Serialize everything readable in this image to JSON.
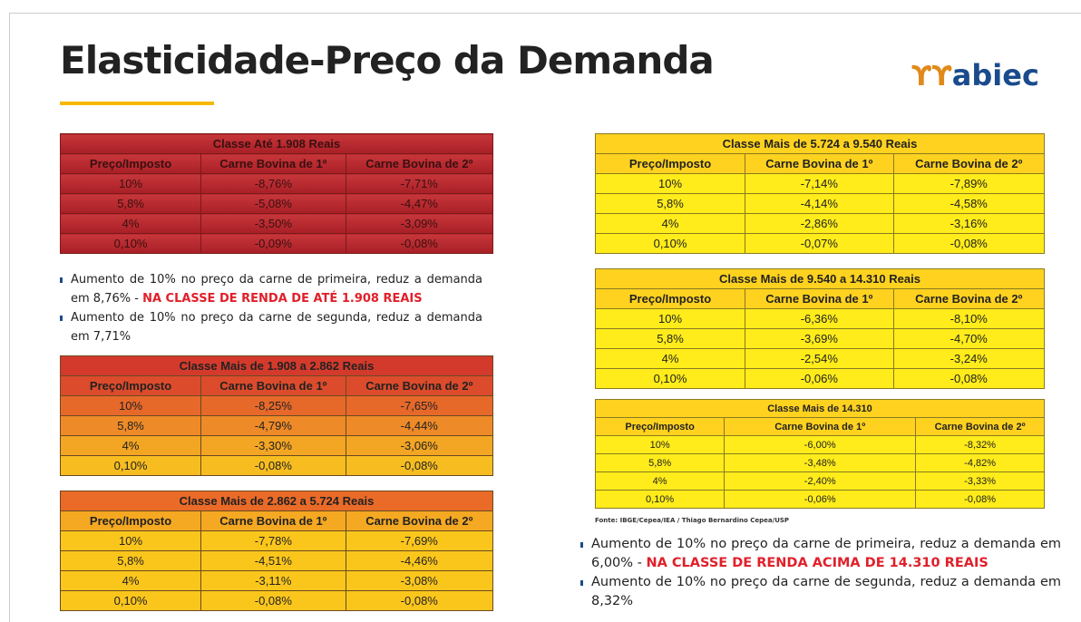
{
  "title": "Elasticidade-Preço da Demanda",
  "logo": "abiec",
  "tables": [
    {
      "caption": "Classe Até 1.908 Reais",
      "header": [
        "Preço/Imposto",
        "Carne Bovina de 1º",
        "Carne Bovina de 2º"
      ],
      "rows": [
        [
          "10%",
          "-8,76%",
          "-7,71%"
        ],
        [
          "5,8%",
          "-5,08%",
          "-4,47%"
        ],
        [
          "4%",
          "-3,50%",
          "-3,09%"
        ],
        [
          "0,10%",
          "-0,09%",
          "-0,08%"
        ]
      ]
    },
    {
      "caption": "Classe Mais de 1.908 a 2.862 Reais",
      "header": [
        "Preço/Imposto",
        "Carne Bovina de 1º",
        "Carne Bovina de 2º"
      ],
      "rows": [
        [
          "10%",
          "-8,25%",
          "-7,65%"
        ],
        [
          "5,8%",
          "-4,79%",
          "-4,44%"
        ],
        [
          "4%",
          "-3,30%",
          "-3,06%"
        ],
        [
          "0,10%",
          "-0,08%",
          "-0,08%"
        ]
      ]
    },
    {
      "caption": "Classe Mais de 2.862 a 5.724 Reais",
      "header": [
        "Preço/Imposto",
        "Carne Bovina de 1º",
        "Carne Bovina de 2º"
      ],
      "rows": [
        [
          "10%",
          "-7,78%",
          "-7,69%"
        ],
        [
          "5,8%",
          "-4,51%",
          "-4,46%"
        ],
        [
          "4%",
          "-3,11%",
          "-3,08%"
        ],
        [
          "0,10%",
          "-0,08%",
          "-0,08%"
        ]
      ]
    },
    {
      "caption": "Classe Mais de 5.724 a 9.540 Reais",
      "header": [
        "Preço/Imposto",
        "Carne Bovina de 1º",
        "Carne Bovina de 2º"
      ],
      "rows": [
        [
          "10%",
          "-7,14%",
          "-7,89%"
        ],
        [
          "5,8%",
          "-4,14%",
          "-4,58%"
        ],
        [
          "4%",
          "-2,86%",
          "-3,16%"
        ],
        [
          "0,10%",
          "-0,07%",
          "-0,08%"
        ]
      ]
    },
    {
      "caption": "Classe Mais de 9.540 a 14.310 Reais",
      "header": [
        "Preço/Imposto",
        "Carne Bovina de 1º",
        "Carne Bovina de 2º"
      ],
      "rows": [
        [
          "10%",
          "-6,36%",
          "-8,10%"
        ],
        [
          "5,8%",
          "-3,69%",
          "-4,70%"
        ],
        [
          "4%",
          "-2,54%",
          "-3,24%"
        ],
        [
          "0,10%",
          "-0,06%",
          "-0,08%"
        ]
      ]
    },
    {
      "caption": "Classe Mais de 14.310",
      "header": [
        "Preço/Imposto",
        "Carne Bovina de 1º",
        "Carne Bovina de 2º"
      ],
      "rows": [
        [
          "10%",
          "-6,00%",
          "-8,32%"
        ],
        [
          "5,8%",
          "-3,48%",
          "-4,82%"
        ],
        [
          "4%",
          "-2,40%",
          "-3,33%"
        ],
        [
          "0,10%",
          "-0,06%",
          "-0,08%"
        ]
      ]
    }
  ],
  "notes_left": [
    {
      "text": "Aumento de 10% no preço da carne de primeira, reduz a demanda em 8,76% - ",
      "highlight": "NA CLASSE DE RENDA DE ATÉ 1.908 REAIS"
    },
    {
      "text": "Aumento de 10% no preço da carne de segunda, reduz a demanda em 7,71%"
    }
  ],
  "source": "Fonte: IBGE/Cepea/IEA / Thiago Bernardino Cepea/USP",
  "notes_right": [
    {
      "text": "Aumento de 10% no preço da carne de primeira, reduz a demanda em 6,00% - ",
      "highlight": "NA CLASSE DE RENDA ACIMA DE 14.310 REAIS"
    },
    {
      "text": "Aumento de 10% no preço da carne de segunda, reduz a demanda em 8,32%"
    }
  ]
}
